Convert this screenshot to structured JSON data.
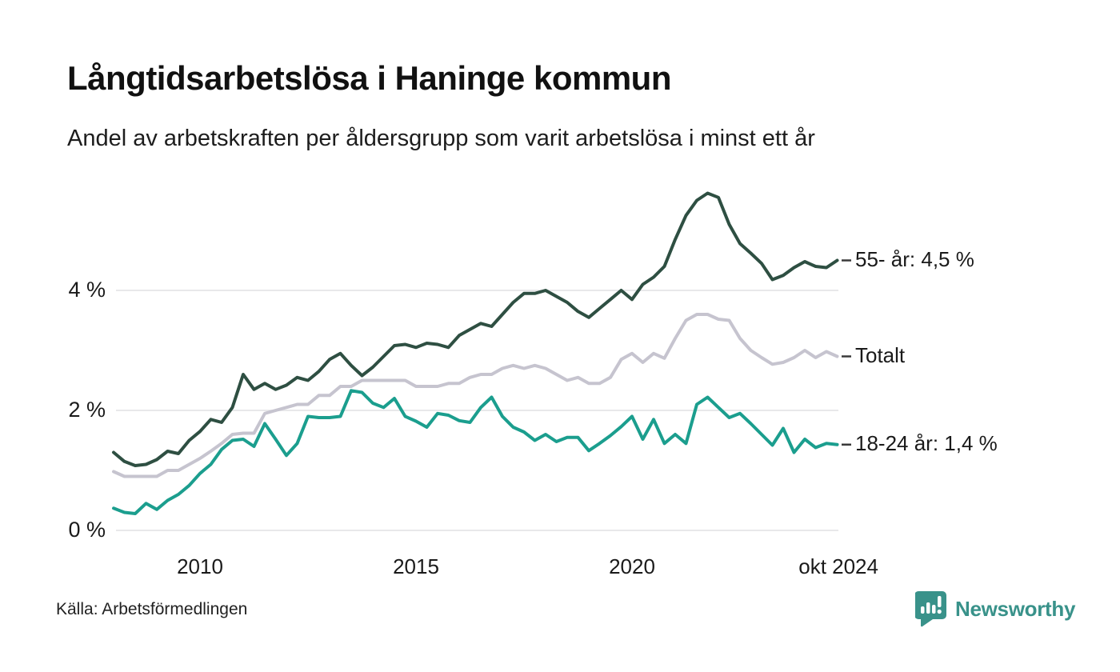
{
  "header": {
    "title": "Långtidsarbetslösa i Haninge kommun",
    "subtitle": "Andel av arbetskraften per åldersgrupp som varit arbetslösa i minst ett år"
  },
  "chart_data": {
    "type": "line",
    "title": "Långtidsarbetslösa i Haninge kommun",
    "subtitle": "Andel av arbetskraften per åldersgrupp som varit arbetslösa i minst ett år",
    "x_unit": "decimal_year_quarterly",
    "xlim": [
      2008.0,
      2024.83
    ],
    "ylim": [
      0,
      5.8
    ],
    "grid": "horizontal",
    "legend_position": "right-inline",
    "x": [
      2008.0,
      2008.25,
      2008.5,
      2008.75,
      2009.0,
      2009.25,
      2009.5,
      2009.75,
      2010.0,
      2010.25,
      2010.5,
      2010.75,
      2011.0,
      2011.25,
      2011.5,
      2011.75,
      2012.0,
      2012.25,
      2012.5,
      2012.75,
      2013.0,
      2013.25,
      2013.5,
      2013.75,
      2014.0,
      2014.25,
      2014.5,
      2014.75,
      2015.0,
      2015.25,
      2015.5,
      2015.75,
      2016.0,
      2016.25,
      2016.5,
      2016.75,
      2017.0,
      2017.25,
      2017.5,
      2017.75,
      2018.0,
      2018.25,
      2018.5,
      2018.75,
      2019.0,
      2019.25,
      2019.5,
      2019.75,
      2020.0,
      2020.25,
      2020.5,
      2020.75,
      2021.0,
      2021.25,
      2021.5,
      2021.75,
      2022.0,
      2022.25,
      2022.5,
      2022.75,
      2023.0,
      2023.25,
      2023.5,
      2023.75,
      2024.0,
      2024.25,
      2024.5,
      2024.75
    ],
    "series": [
      {
        "name": "55- år",
        "label": "55- år: 4,5 %",
        "end_value_text": "4,5 %",
        "color": "#2e4f42",
        "values": [
          1.3,
          1.15,
          1.08,
          1.1,
          1.18,
          1.32,
          1.28,
          1.5,
          1.65,
          1.85,
          1.8,
          2.05,
          2.6,
          2.35,
          2.45,
          2.35,
          2.42,
          2.55,
          2.5,
          2.65,
          2.85,
          2.95,
          2.75,
          2.58,
          2.72,
          2.9,
          3.08,
          3.1,
          3.05,
          3.12,
          3.1,
          3.05,
          3.25,
          3.35,
          3.45,
          3.4,
          3.6,
          3.8,
          3.95,
          3.95,
          4.0,
          3.9,
          3.8,
          3.65,
          3.55,
          3.7,
          3.85,
          4.0,
          3.85,
          4.1,
          4.22,
          4.4,
          4.85,
          5.25,
          5.5,
          5.62,
          5.55,
          5.1,
          4.78,
          4.62,
          4.45,
          4.18,
          4.25,
          4.38,
          4.48,
          4.4,
          4.38,
          4.5
        ]
      },
      {
        "name": "Totalt",
        "label": "Totalt",
        "end_value_text": "",
        "color": "#c6c4cf",
        "values": [
          0.98,
          0.9,
          0.9,
          0.9,
          0.9,
          1.0,
          1.0,
          1.1,
          1.2,
          1.32,
          1.45,
          1.6,
          1.62,
          1.62,
          1.95,
          2.0,
          2.05,
          2.1,
          2.1,
          2.25,
          2.25,
          2.4,
          2.4,
          2.5,
          2.5,
          2.5,
          2.5,
          2.5,
          2.4,
          2.4,
          2.4,
          2.45,
          2.45,
          2.55,
          2.6,
          2.6,
          2.7,
          2.75,
          2.7,
          2.75,
          2.7,
          2.6,
          2.5,
          2.55,
          2.45,
          2.45,
          2.55,
          2.85,
          2.95,
          2.8,
          2.95,
          2.87,
          3.2,
          3.5,
          3.6,
          3.6,
          3.52,
          3.5,
          3.2,
          3.0,
          2.88,
          2.77,
          2.8,
          2.88,
          3.0,
          2.88,
          2.98,
          2.9
        ]
      },
      {
        "name": "18-24 år",
        "label": "18-24 år: 1,4 %",
        "end_value_text": "1,4 %",
        "color": "#1b9e8e",
        "values": [
          0.37,
          0.3,
          0.28,
          0.45,
          0.35,
          0.5,
          0.6,
          0.75,
          0.95,
          1.1,
          1.35,
          1.5,
          1.52,
          1.4,
          1.78,
          1.52,
          1.25,
          1.45,
          1.9,
          1.88,
          1.88,
          1.9,
          2.33,
          2.3,
          2.12,
          2.05,
          2.2,
          1.9,
          1.82,
          1.72,
          1.95,
          1.92,
          1.83,
          1.8,
          2.05,
          2.22,
          1.9,
          1.72,
          1.64,
          1.5,
          1.6,
          1.48,
          1.55,
          1.55,
          1.33,
          1.45,
          1.58,
          1.73,
          1.9,
          1.52,
          1.85,
          1.45,
          1.6,
          1.45,
          2.1,
          2.22,
          2.05,
          1.88,
          1.95,
          1.78,
          1.6,
          1.42,
          1.7,
          1.3,
          1.52,
          1.38,
          1.45,
          1.43
        ]
      }
    ],
    "yticks": [
      {
        "value": 0,
        "label": "0 %"
      },
      {
        "value": 2,
        "label": "2 %"
      },
      {
        "value": 4,
        "label": "4 %"
      }
    ],
    "xticks": [
      {
        "value": 2010,
        "label": "2010"
      },
      {
        "value": 2015,
        "label": "2015"
      },
      {
        "value": 2020,
        "label": "2020"
      },
      {
        "value": 2024.78,
        "label": "okt 2024"
      }
    ],
    "gridline_color": "#e8e8ea",
    "annotation_dash_color": "#3a3a3a"
  },
  "footer": {
    "source": "Källa: Arbetsförmedlingen",
    "brand_name": "Newsworthy",
    "brand_color": "#39928a",
    "brand_icon": "newsworthy-bar-chart-bubble-icon"
  }
}
